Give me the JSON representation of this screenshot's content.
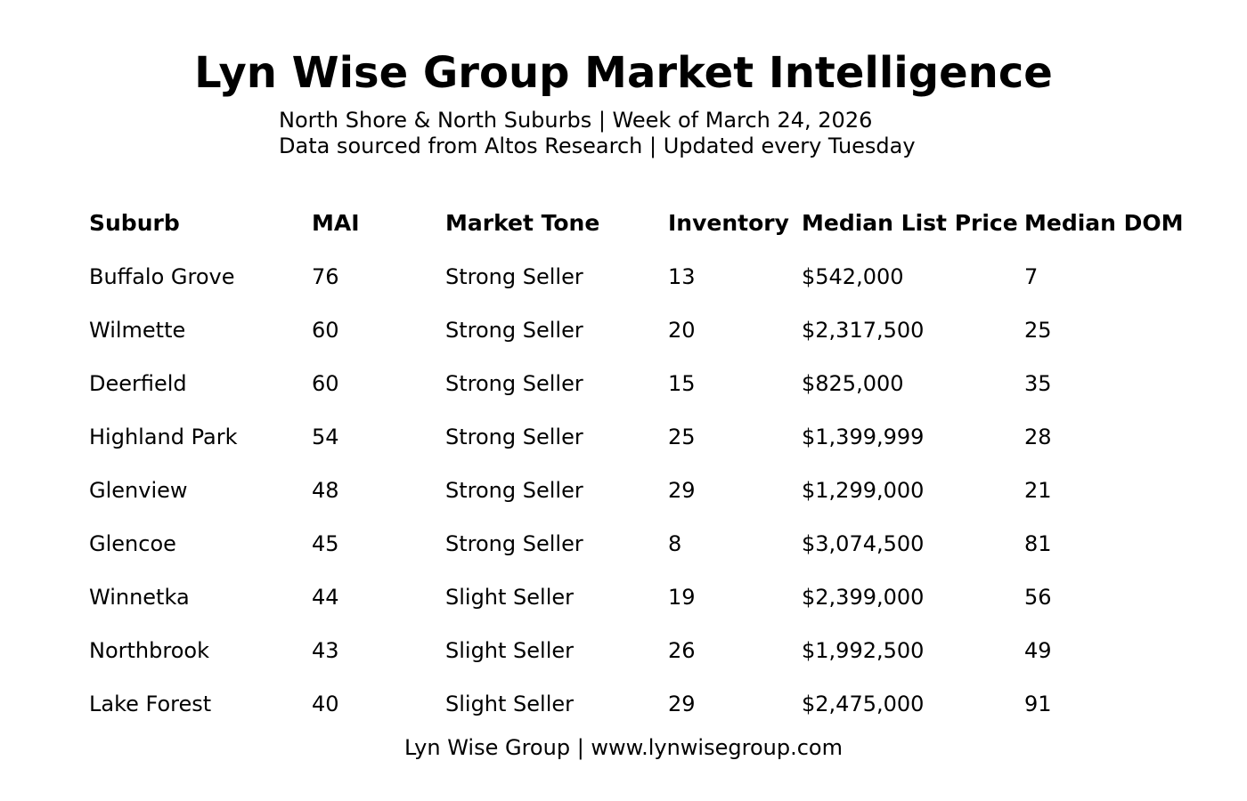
{
  "title": "Lyn Wise Group Market Intelligence",
  "subtitle": {
    "line1": "North Shore & North Suburbs | Week of March 24, 2026",
    "line2": "Data sourced from Altos Research | Updated every Tuesday"
  },
  "table": {
    "headers": [
      "Suburb",
      "MAI",
      "Market Tone",
      "Inventory",
      "Median List Price",
      "Median DOM"
    ],
    "rows": [
      [
        "Buffalo Grove",
        "76",
        "Strong Seller",
        "13",
        "$542,000",
        "7"
      ],
      [
        "Wilmette",
        "60",
        "Strong Seller",
        "20",
        "$2,317,500",
        "25"
      ],
      [
        "Deerfield",
        "60",
        "Strong Seller",
        "15",
        "$825,000",
        "35"
      ],
      [
        "Highland Park",
        "54",
        "Strong Seller",
        "25",
        "$1,399,999",
        "28"
      ],
      [
        "Glenview",
        "48",
        "Strong Seller",
        "29",
        "$1,299,000",
        "21"
      ],
      [
        "Glencoe",
        "45",
        "Strong Seller",
        "8",
        "$3,074,500",
        "81"
      ],
      [
        "Winnetka",
        "44",
        "Slight Seller",
        "19",
        "$2,399,000",
        "56"
      ],
      [
        "Northbrook",
        "43",
        "Slight Seller",
        "26",
        "$1,992,500",
        "49"
      ],
      [
        "Lake Forest",
        "40",
        "Slight Seller",
        "29",
        "$2,475,000",
        "91"
      ]
    ]
  },
  "footer": "Lyn Wise Group | www.lynwisegroup.com"
}
